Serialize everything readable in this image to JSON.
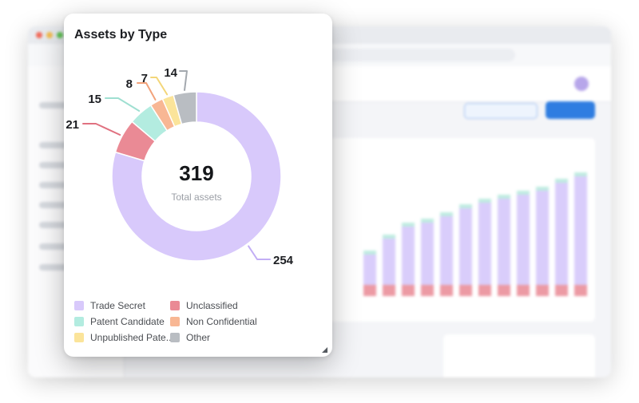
{
  "card": {
    "title": "Assets by Type"
  },
  "center": {
    "total": "319",
    "label": "Total assets"
  },
  "colors": {
    "trade_secret": "#d8c9fb",
    "unclassified": "#ea8a95",
    "patent_candidate": "#b3ece0",
    "non_confidential": "#f8b794",
    "unpublished_patent": "#fbe49a",
    "other": "#b9bdc2"
  },
  "chart_data": {
    "type": "pie",
    "title": "Assets by Type",
    "total": 319,
    "categories": [
      "Trade Secret",
      "Unclassified",
      "Patent Candidate",
      "Non Confidential",
      "Unpublished Pate...",
      "Other"
    ],
    "values": [
      254,
      21,
      15,
      8,
      7,
      14
    ],
    "legend_position": "bottom"
  }
}
